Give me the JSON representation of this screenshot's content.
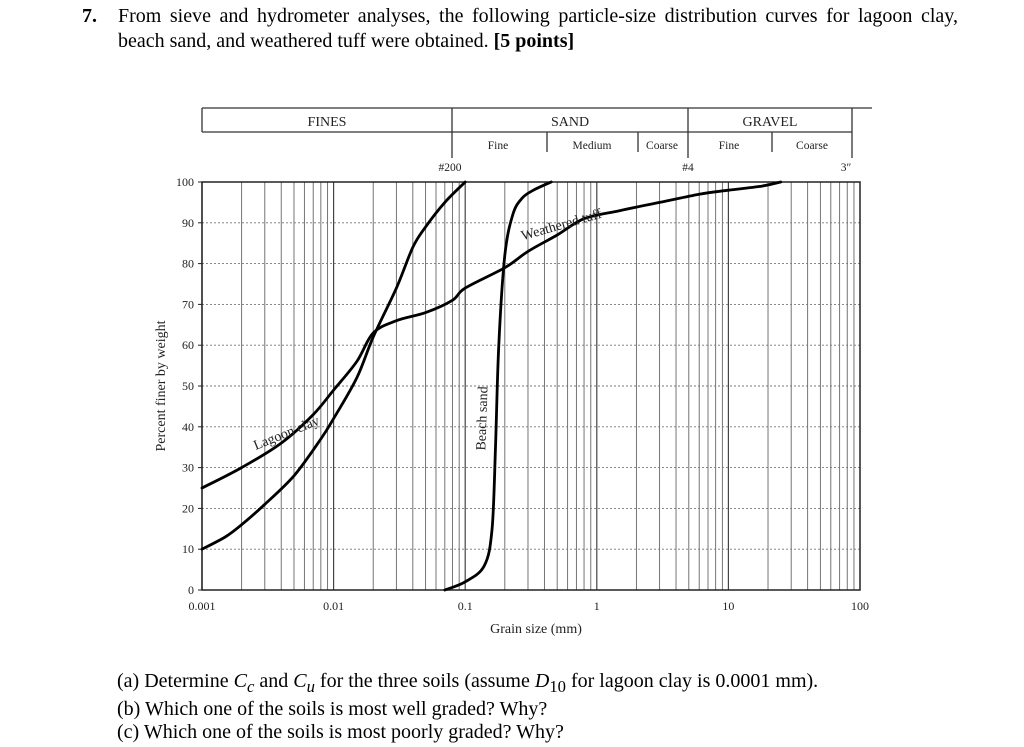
{
  "question": {
    "number": "7.",
    "text": "From sieve and hydrometer analyses, the following particle-size distribution curves for lagoon clay, beach sand, and weathered tuff were obtained.",
    "points": "[5 points]"
  },
  "header": {
    "fines": "FINES",
    "sand": "SAND",
    "gravel": "GRAVEL",
    "sand_fine": "Fine",
    "sand_medium": "Medium",
    "sand_coarse": "Coarse",
    "gravel_fine": "Fine",
    "gravel_coarse": "Coarse",
    "sieve_200": "#200",
    "sieve_4": "#4",
    "sieve_3in": "3″"
  },
  "chart_data": {
    "type": "line",
    "x_scale": "log",
    "xlim": [
      0.001,
      100
    ],
    "ylim": [
      0,
      100
    ],
    "xlabel": "Grain size (mm)",
    "ylabel": "Percent finer by weight",
    "x_ticks": [
      {
        "value": 0.001,
        "label": "0.001"
      },
      {
        "value": 0.01,
        "label": "0.01"
      },
      {
        "value": 0.1,
        "label": "0.1"
      },
      {
        "value": 1,
        "label": "1"
      },
      {
        "value": 10,
        "label": "10"
      },
      {
        "value": 100,
        "label": "100"
      }
    ],
    "y_ticks": [
      0,
      10,
      20,
      30,
      40,
      50,
      60,
      70,
      80,
      90,
      100
    ],
    "grid": true,
    "series": [
      {
        "name": "Lagoon clay",
        "color": "#000000",
        "points": [
          [
            0.001,
            10
          ],
          [
            0.0015,
            13
          ],
          [
            0.002,
            16
          ],
          [
            0.003,
            21
          ],
          [
            0.005,
            28
          ],
          [
            0.008,
            37
          ],
          [
            0.01,
            42
          ],
          [
            0.015,
            52
          ],
          [
            0.02,
            62
          ],
          [
            0.03,
            74
          ],
          [
            0.04,
            84
          ],
          [
            0.05,
            89
          ],
          [
            0.07,
            95
          ],
          [
            0.1,
            100
          ]
        ]
      },
      {
        "name": "Beach sand",
        "color": "#000000",
        "points": [
          [
            0.07,
            0
          ],
          [
            0.1,
            2
          ],
          [
            0.14,
            6
          ],
          [
            0.16,
            15
          ],
          [
            0.17,
            35
          ],
          [
            0.18,
            60
          ],
          [
            0.2,
            82
          ],
          [
            0.23,
            92
          ],
          [
            0.27,
            96
          ],
          [
            0.33,
            98
          ],
          [
            0.45,
            100
          ]
        ]
      },
      {
        "name": "Weathered tuff",
        "color": "#000000",
        "points": [
          [
            0.001,
            25
          ],
          [
            0.002,
            30
          ],
          [
            0.004,
            36
          ],
          [
            0.007,
            43
          ],
          [
            0.01,
            49
          ],
          [
            0.015,
            56
          ],
          [
            0.02,
            63
          ],
          [
            0.03,
            66
          ],
          [
            0.05,
            68
          ],
          [
            0.08,
            71
          ],
          [
            0.1,
            74
          ],
          [
            0.2,
            79
          ],
          [
            0.3,
            83
          ],
          [
            0.5,
            87
          ],
          [
            0.8,
            91
          ],
          [
            1.5,
            93
          ],
          [
            3,
            95
          ],
          [
            6,
            97
          ],
          [
            10,
            98
          ],
          [
            18,
            99
          ],
          [
            25,
            100
          ]
        ]
      }
    ],
    "annotations": [
      {
        "text": "Lagoon clay",
        "series": "Lagoon clay"
      },
      {
        "text": "Beach sand",
        "series": "Beach sand"
      },
      {
        "text": "Weathered tuff",
        "series": "Weathered tuff"
      }
    ]
  },
  "parts": {
    "a_prefix": "(a) Determine ",
    "a_cc": "C",
    "a_cc_sub": "c",
    "a_and": " and ",
    "a_cu": "C",
    "a_cu_sub": "u",
    "a_mid": " for the three soils (assume ",
    "a_d": "D",
    "a_d_sub": "10",
    "a_suffix": " for lagoon clay is 0.0001 mm).",
    "b": "(b) Which one of the soils is most well graded? Why?",
    "c": "(c) Which one of the soils is most poorly graded? Why?"
  }
}
